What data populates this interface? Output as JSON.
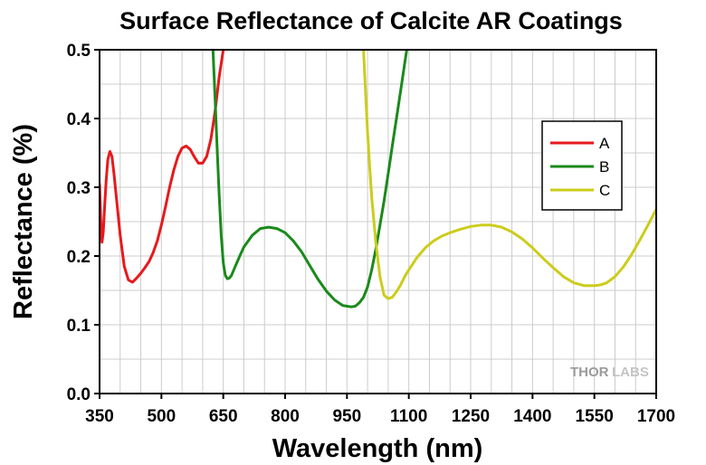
{
  "chart_data": {
    "type": "line",
    "title": "Surface Reflectance of Calcite AR Coatings",
    "xlabel": "Wavelength (nm)",
    "ylabel": "Reflectance (%)",
    "xlim": [
      350,
      1700
    ],
    "ylim": [
      0,
      0.5
    ],
    "xticks": [
      350,
      500,
      650,
      800,
      950,
      1100,
      1250,
      1400,
      1550,
      1700
    ],
    "yticks": [
      "0.0",
      "0.1",
      "0.2",
      "0.3",
      "0.4",
      "0.5"
    ],
    "grid": true,
    "legend_position": "right",
    "watermark": "THORLABS",
    "series": [
      {
        "name": "A",
        "color": "#e8191c",
        "x": [
          350,
          353,
          356,
          359,
          362,
          366,
          370,
          375,
          380,
          385,
          390,
          400,
          410,
          420,
          430,
          440,
          450,
          460,
          470,
          480,
          490,
          500,
          510,
          520,
          530,
          540,
          550,
          560,
          570,
          580,
          590,
          600,
          610,
          620,
          630,
          640,
          645,
          650,
          655,
          660
        ],
        "y": [
          0.305,
          0.25,
          0.22,
          0.235,
          0.27,
          0.31,
          0.34,
          0.352,
          0.345,
          0.32,
          0.29,
          0.23,
          0.185,
          0.165,
          0.162,
          0.168,
          0.175,
          0.183,
          0.192,
          0.205,
          0.222,
          0.245,
          0.272,
          0.3,
          0.325,
          0.345,
          0.357,
          0.36,
          0.355,
          0.344,
          0.335,
          0.335,
          0.345,
          0.37,
          0.41,
          0.46,
          0.48,
          0.5,
          0.52,
          0.55
        ]
      },
      {
        "name": "B",
        "color": "#1a8a1a",
        "x": [
          620,
          625,
          630,
          635,
          640,
          645,
          650,
          655,
          660,
          665,
          670,
          680,
          690,
          700,
          720,
          740,
          760,
          780,
          800,
          820,
          840,
          860,
          880,
          900,
          920,
          940,
          960,
          970,
          980,
          990,
          1000,
          1010,
          1020,
          1030,
          1040,
          1050,
          1060,
          1070,
          1080,
          1090,
          1100,
          1110
        ],
        "y": [
          0.55,
          0.5,
          0.43,
          0.36,
          0.29,
          0.23,
          0.19,
          0.172,
          0.167,
          0.168,
          0.172,
          0.186,
          0.2,
          0.213,
          0.23,
          0.24,
          0.242,
          0.24,
          0.234,
          0.222,
          0.206,
          0.186,
          0.166,
          0.149,
          0.136,
          0.128,
          0.126,
          0.127,
          0.132,
          0.14,
          0.155,
          0.18,
          0.21,
          0.245,
          0.28,
          0.32,
          0.36,
          0.4,
          0.44,
          0.48,
          0.52,
          0.55
        ]
      },
      {
        "name": "C",
        "color": "#cccc1c",
        "x": [
          990,
          995,
          1000,
          1005,
          1010,
          1020,
          1030,
          1040,
          1050,
          1060,
          1070,
          1080,
          1090,
          1100,
          1120,
          1140,
          1160,
          1180,
          1200,
          1225,
          1250,
          1275,
          1300,
          1325,
          1350,
          1375,
          1400,
          1425,
          1450,
          1475,
          1500,
          1525,
          1550,
          1565,
          1580,
          1600,
          1620,
          1640,
          1660,
          1680,
          1700
        ],
        "y": [
          0.5,
          0.44,
          0.38,
          0.33,
          0.285,
          0.22,
          0.17,
          0.143,
          0.138,
          0.14,
          0.148,
          0.158,
          0.17,
          0.18,
          0.198,
          0.212,
          0.222,
          0.229,
          0.234,
          0.239,
          0.243,
          0.245,
          0.245,
          0.242,
          0.235,
          0.225,
          0.212,
          0.197,
          0.183,
          0.17,
          0.161,
          0.157,
          0.157,
          0.158,
          0.161,
          0.17,
          0.184,
          0.202,
          0.223,
          0.245,
          0.268
        ]
      }
    ]
  }
}
